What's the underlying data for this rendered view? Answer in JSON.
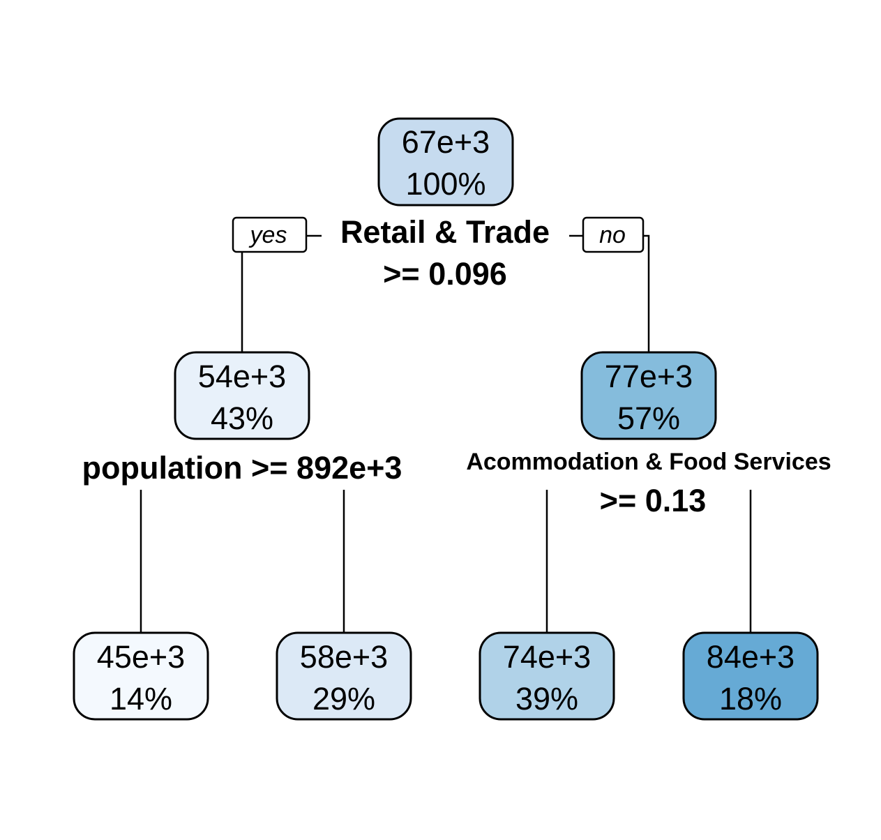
{
  "tree": {
    "root": {
      "value": "67e+3",
      "percent": "100%",
      "color": "#c6dbef"
    },
    "root_split": {
      "line1": "Retail & Trade",
      "line2": ">= 0.096"
    },
    "branch_labels": {
      "yes": "yes",
      "no": "no"
    },
    "left": {
      "value": "54e+3",
      "percent": "43%",
      "color": "#e8f1fa"
    },
    "left_split": {
      "line1": "population >= 892e+3"
    },
    "right": {
      "value": "77e+3",
      "percent": "57%",
      "color": "#85bcdc"
    },
    "right_split": {
      "line1": "Acommodation & Food Services",
      "line2": ">= 0.13"
    },
    "leaves": [
      {
        "value": "45e+3",
        "percent": "14%",
        "color": "#f4f9fe"
      },
      {
        "value": "58e+3",
        "percent": "29%",
        "color": "#dce9f6"
      },
      {
        "value": "74e+3",
        "percent": "39%",
        "color": "#b0d2e8"
      },
      {
        "value": "84e+3",
        "percent": "18%",
        "color": "#66aad5"
      }
    ]
  }
}
